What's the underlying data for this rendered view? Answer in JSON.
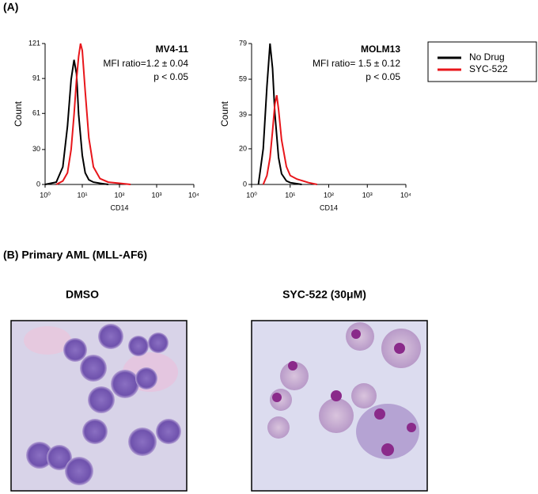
{
  "panel_a_label": "(A)",
  "panel_b_label": "(B) Primary AML (MLL-AF6)",
  "images": [
    {
      "caption": "DMSO"
    },
    {
      "caption": "SYC-522 (30μM)"
    }
  ],
  "chart_data": [
    {
      "type": "line",
      "title": "MV4-11",
      "annotations": [
        "MFI ratio=1.2 ± 0.04",
        "p < 0.05"
      ],
      "xlabel": "CD14",
      "ylabel": "Count",
      "xlog": true,
      "legend": "outside-right",
      "xlim": [
        1,
        10000
      ],
      "xticks": [
        {
          "value": 1,
          "label": "10⁰"
        },
        {
          "value": 10,
          "label": "10¹"
        },
        {
          "value": 100,
          "label": "10²"
        },
        {
          "value": 1000,
          "label": "10³"
        },
        {
          "value": 10000,
          "label": "10⁴"
        }
      ],
      "ylim": [
        0,
        121
      ],
      "yticks": [
        0,
        30,
        61,
        91,
        121
      ],
      "series": [
        {
          "name": "No Drug",
          "color": "#000000",
          "x": [
            1,
            2,
            3,
            4,
            5,
            6,
            7,
            8,
            10,
            12,
            15,
            20,
            30,
            50
          ],
          "values": [
            0,
            2,
            15,
            50,
            90,
            107,
            95,
            60,
            25,
            10,
            4,
            2,
            1,
            0
          ]
        },
        {
          "name": "SYC-522",
          "color": "#e8161b",
          "x": [
            2,
            3,
            4,
            5,
            6,
            7,
            8,
            9,
            10,
            12,
            15,
            20,
            30,
            50,
            100,
            200
          ],
          "values": [
            0,
            3,
            10,
            30,
            60,
            90,
            110,
            121,
            115,
            80,
            40,
            15,
            5,
            2,
            1,
            0
          ]
        }
      ]
    },
    {
      "type": "line",
      "title": "MOLM13",
      "annotations": [
        "MFI ratio= 1.5 ± 0.12",
        "p < 0.05"
      ],
      "xlabel": "CD14",
      "ylabel": "Count",
      "xlog": true,
      "xlim": [
        1,
        10000
      ],
      "xticks": [
        {
          "value": 1,
          "label": "10⁰"
        },
        {
          "value": 10,
          "label": "10¹"
        },
        {
          "value": 100,
          "label": "10²"
        },
        {
          "value": 1000,
          "label": "10³"
        },
        {
          "value": 10000,
          "label": "10⁴"
        }
      ],
      "ylim": [
        0,
        79
      ],
      "yticks": [
        0,
        20,
        39,
        59,
        79
      ],
      "series": [
        {
          "name": "No Drug",
          "color": "#000000",
          "x": [
            1.5,
            2,
            2.5,
            3,
            3.5,
            4,
            5,
            6,
            8,
            10,
            20
          ],
          "values": [
            0,
            20,
            55,
            79,
            65,
            40,
            15,
            6,
            2,
            1,
            0
          ]
        },
        {
          "name": "SYC-522",
          "color": "#e8161b",
          "x": [
            2,
            2.5,
            3,
            3.5,
            4,
            4.5,
            5,
            6,
            8,
            10,
            15,
            30,
            50
          ],
          "values": [
            0,
            5,
            15,
            30,
            45,
            50,
            42,
            25,
            10,
            5,
            3,
            1,
            0
          ]
        }
      ]
    }
  ]
}
